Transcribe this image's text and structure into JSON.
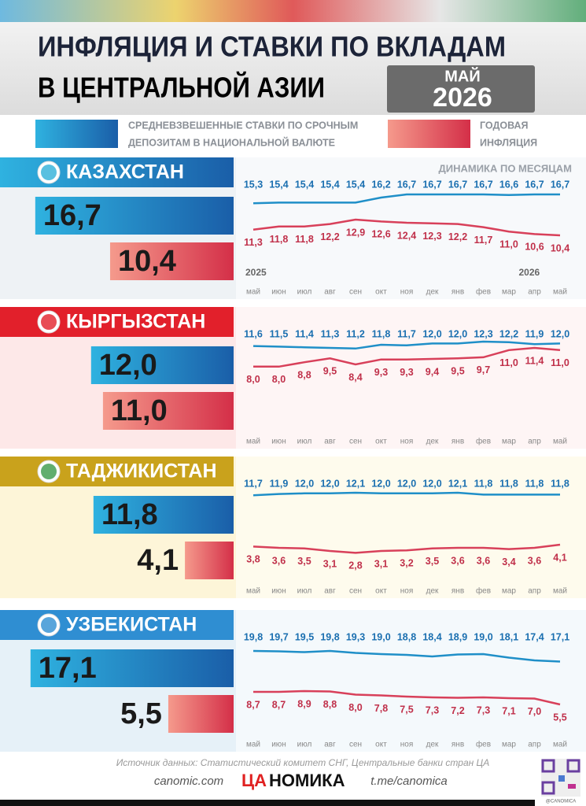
{
  "header": {
    "title_line1": "ИНФЛЯЦИЯ И СТАВКИ ПО ВКЛАДАМ",
    "title_line2": "В ЦЕНТРАЛЬНОЙ АЗИИ",
    "badge_month": "МАЙ",
    "badge_year": "2026"
  },
  "legend": {
    "deposit_lines": [
      "СРЕДНЕВЗВЕШЕННЫЕ СТАВКИ ПО СРОЧНЫМ",
      "ДЕПОЗИТАМ В НАЦИОНАЛЬНОЙ ВАЛЮТЕ"
    ],
    "inflation_lines": [
      "ГОДОВАЯ",
      "ИНФЛЯЦИЯ"
    ]
  },
  "chart_caption": "ДИНАМИКА ПО МЕСЯЦАМ",
  "years": [
    "2025",
    "2026"
  ],
  "months": [
    "май",
    "июн",
    "июл",
    "авг",
    "сен",
    "окт",
    "ноя",
    "дек",
    "янв",
    "фев",
    "мар",
    "апр",
    "май"
  ],
  "countries": [
    {
      "name": "КАЗАХСТАН",
      "bars": {
        "values": [
          16.7,
          10.4
        ],
        "value_labels": [
          "16,7",
          "10,4"
        ]
      },
      "deposit": {
        "values": [
          15.3,
          15.4,
          15.4,
          15.4,
          15.4,
          16.2,
          16.7,
          16.7,
          16.7,
          16.7,
          16.6,
          16.7,
          16.7
        ],
        "value_labels": [
          "15,3",
          "15,4",
          "15,4",
          "15,4",
          "15,4",
          "16,2",
          "16,7",
          "16,7",
          "16,7",
          "16,7",
          "16,6",
          "16,7",
          "16,7"
        ]
      },
      "inflation": {
        "values": [
          11.3,
          11.8,
          11.8,
          12.2,
          12.9,
          12.6,
          12.4,
          12.3,
          12.2,
          11.7,
          11.0,
          10.6,
          10.4
        ],
        "value_labels": [
          "11,3",
          "11,8",
          "11,8",
          "12,2",
          "12,9",
          "12,6",
          "12,4",
          "12,3",
          "12,2",
          "11,7",
          "11,0",
          "10,6",
          "10,4"
        ]
      }
    },
    {
      "name": "КЫРГЫЗСТАН",
      "bars": {
        "values": [
          12.0,
          11.0
        ],
        "value_labels": [
          "12,0",
          "11,0"
        ]
      },
      "deposit": {
        "values": [
          11.6,
          11.5,
          11.4,
          11.3,
          11.2,
          11.8,
          11.7,
          12.0,
          12.0,
          12.3,
          12.2,
          11.9,
          12.0
        ],
        "value_labels": [
          "11,6",
          "11,5",
          "11,4",
          "11,3",
          "11,2",
          "11,8",
          "11,7",
          "12,0",
          "12,0",
          "12,3",
          "12,2",
          "11,9",
          "12,0"
        ]
      },
      "inflation": {
        "values": [
          8.0,
          8.0,
          8.8,
          9.5,
          8.4,
          9.3,
          9.3,
          9.4,
          9.5,
          9.7,
          11.0,
          11.4,
          11.0
        ],
        "value_labels": [
          "8,0",
          "8,0",
          "8,8",
          "9,5",
          "8,4",
          "9,3",
          "9,3",
          "9,4",
          "9,5",
          "9,7",
          "11,0",
          "11,4",
          "11,0"
        ]
      }
    },
    {
      "name": "ТАДЖИКИСТАН",
      "bars": {
        "values": [
          11.8,
          4.1
        ],
        "value_labels": [
          "11,8",
          "4,1"
        ]
      },
      "deposit": {
        "values": [
          11.7,
          11.9,
          12.0,
          12.0,
          12.1,
          12.0,
          12.0,
          12.0,
          12.1,
          11.8,
          11.8,
          11.8,
          11.8
        ],
        "value_labels": [
          "11,7",
          "11,9",
          "12,0",
          "12,0",
          "12,1",
          "12,0",
          "12,0",
          "12,0",
          "12,1",
          "11,8",
          "11,8",
          "11,8",
          "11,8"
        ]
      },
      "inflation": {
        "values": [
          3.8,
          3.6,
          3.5,
          3.1,
          2.8,
          3.1,
          3.2,
          3.5,
          3.6,
          3.6,
          3.4,
          3.6,
          4.1
        ],
        "value_labels": [
          "3,8",
          "3,6",
          "3,5",
          "3,1",
          "2,8",
          "3,1",
          "3,2",
          "3,5",
          "3,6",
          "3,6",
          "3,4",
          "3,6",
          "4,1"
        ]
      }
    },
    {
      "name": "УЗБЕКИСТАН",
      "bars": {
        "values": [
          17.1,
          5.5
        ],
        "value_labels": [
          "17,1",
          "5,5"
        ]
      },
      "deposit": {
        "values": [
          19.8,
          19.7,
          19.5,
          19.8,
          19.3,
          19.0,
          18.8,
          18.4,
          18.9,
          19.0,
          18.1,
          17.4,
          17.1
        ],
        "value_labels": [
          "19,8",
          "19,7",
          "19,5",
          "19,8",
          "19,3",
          "19,0",
          "18,8",
          "18,4",
          "18,9",
          "19,0",
          "18,1",
          "17,4",
          "17,1"
        ]
      },
      "inflation": {
        "values": [
          8.7,
          8.7,
          8.9,
          8.8,
          8.0,
          7.8,
          7.5,
          7.3,
          7.2,
          7.3,
          7.1,
          7.0,
          5.5
        ],
        "value_labels": [
          "8,7",
          "8,7",
          "8,9",
          "8,8",
          "8,0",
          "7,8",
          "7,5",
          "7,3",
          "7,2",
          "7,3",
          "7,1",
          "7,0",
          "5,5"
        ]
      }
    }
  ],
  "footer": {
    "source": "Источник данных: Статистический комитет СНГ, Центральные банки  стран ЦА",
    "site": "canomic.com",
    "logo_accent": "ЦА",
    "logo_rest": "НОМИКА",
    "telegram": "t.me/canomica",
    "handle": "@CANOMICA"
  }
}
